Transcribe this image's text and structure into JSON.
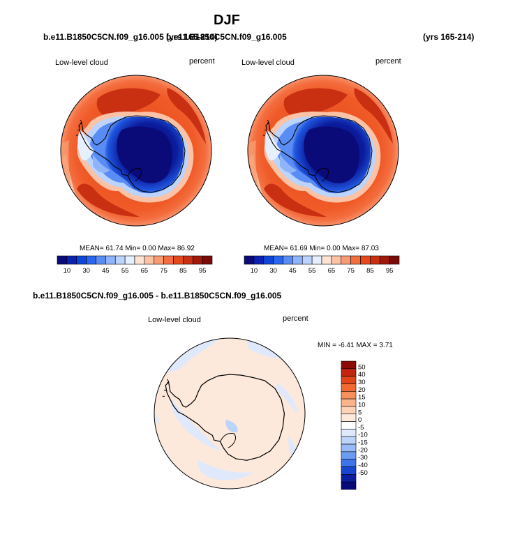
{
  "figure": {
    "title": "DJF",
    "panels": [
      {
        "case": "b.e11.B1850C5CN.f09_g16.005 (yrs 165-214)",
        "variable": "Low-level cloud",
        "units": "percent",
        "stats": {
          "mean_label": "MEAN=",
          "mean": "61.74",
          "min_label": "Min=",
          "min": "0.00",
          "max_label": "Max=",
          "max": "86.92"
        }
      },
      {
        "case": "b.e11.B1850C5CN.f09_g16.005",
        "years": "(yrs 165-214)",
        "variable": "Low-level cloud",
        "units": "percent",
        "stats": {
          "mean_label": "MEAN=",
          "mean": "61.69",
          "min_label": "Min=",
          "min": "0.00",
          "max_label": "Max=",
          "max": "87.03"
        }
      }
    ],
    "difference": {
      "case": "b.e11.B1850C5CN.f09_g16.005 - b.e11.B1850C5CN.f09_g16.005",
      "variable": "Low-level cloud",
      "units": "percent",
      "stats": {
        "min_label": "MIN =",
        "min": "-6.41",
        "max_label": "MAX =",
        "max": "3.71"
      }
    }
  },
  "chart_data": [
    {
      "type": "heatmap",
      "projection": "south-polar-stereographic",
      "title": "Low-level cloud",
      "units": "percent",
      "colorbar": {
        "orientation": "horizontal",
        "labels": [
          "10",
          "30",
          "45",
          "55",
          "65",
          "75",
          "85",
          "95"
        ],
        "colors": [
          "#0a0a78",
          "#0b21b0",
          "#1046d8",
          "#2a66ee",
          "#5a8cf5",
          "#8fb4fa",
          "#bcd4fb",
          "#e6effd",
          "#fde3d3",
          "#fbc2a5",
          "#f89b72",
          "#f46d3e",
          "#e64a1c",
          "#c93012",
          "#a1180c",
          "#7a0a06"
        ]
      }
    },
    {
      "type": "heatmap",
      "projection": "south-polar-stereographic",
      "title": "Low-level cloud",
      "units": "percent",
      "colorbar": {
        "orientation": "horizontal",
        "labels": [
          "10",
          "30",
          "45",
          "55",
          "65",
          "75",
          "85",
          "95"
        ],
        "colors": [
          "#0a0a78",
          "#0b21b0",
          "#1046d8",
          "#2a66ee",
          "#5a8cf5",
          "#8fb4fa",
          "#bcd4fb",
          "#e6effd",
          "#fde3d3",
          "#fbc2a5",
          "#f89b72",
          "#f46d3e",
          "#e64a1c",
          "#c93012",
          "#a1180c",
          "#7a0a06"
        ]
      }
    },
    {
      "type": "heatmap",
      "projection": "south-polar-stereographic",
      "title": "Low-level cloud",
      "units": "percent",
      "colorbar": {
        "orientation": "vertical",
        "labels": [
          "50",
          "40",
          "30",
          "20",
          "15",
          "10",
          "5",
          "0",
          "-5",
          "-10",
          "-15",
          "-20",
          "-30",
          "-40",
          "-50"
        ],
        "colors": [
          "#8c0a08",
          "#c1240f",
          "#e0441a",
          "#f26a33",
          "#f7905c",
          "#fab48a",
          "#fcd3b6",
          "#fde9dc",
          "#ffffff",
          "#dfe9fb",
          "#bcd3fa",
          "#98bbf7",
          "#6c9cf2",
          "#3f74ea",
          "#1846d0",
          "#0b1fa0",
          "#07087a"
        ]
      }
    }
  ]
}
